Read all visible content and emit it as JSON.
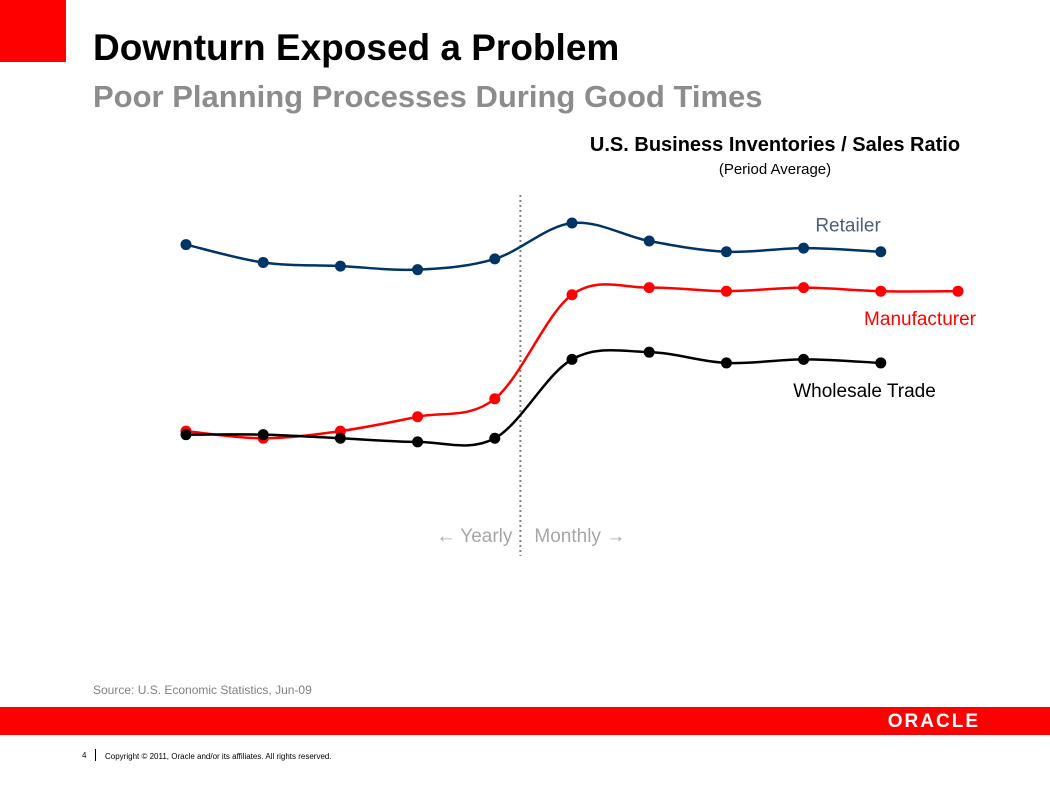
{
  "slide": {
    "title": "Downturn Exposed a Problem",
    "subtitle": "Poor Planning Processes During Good Times",
    "source": "Source:  U.S. Economic Statistics, Jun-09",
    "page_number": "4",
    "copyright": "Copyright © 2011, Oracle and/or its affiliates. All rights reserved.",
    "logo": "ORACLE"
  },
  "colors": {
    "accent": "#ff0000",
    "retailer": "#003366",
    "manufacturer": "#ff0000",
    "wholesale": "#000000",
    "divider_label": "#a6a6a6"
  },
  "chart_data": {
    "type": "line",
    "title": "U.S. Business Inventories / Sales Ratio",
    "subtitle": "(Period Average)",
    "xlabel": "",
    "ylabel": "",
    "grid": false,
    "legend": "inline labels at right end of each line",
    "divider": {
      "after_index": 4,
      "left_label": "Yearly",
      "right_label": "Monthly",
      "style": "dotted"
    },
    "x": [
      1,
      2,
      3,
      4,
      5,
      6,
      7,
      8,
      9,
      10,
      11
    ],
    "ylim": [
      1.14,
      1.6
    ],
    "series": [
      {
        "name": "Retailer",
        "color": "#003366",
        "values": [
          1.51,
          1.485,
          1.48,
          1.475,
          1.49,
          1.54,
          1.515,
          1.5,
          1.505,
          1.5,
          null
        ]
      },
      {
        "name": "Manufacturer",
        "color": "#ff0000",
        "values": [
          1.25,
          1.24,
          1.25,
          1.27,
          1.295,
          1.44,
          1.45,
          1.445,
          1.45,
          1.445,
          1.445
        ]
      },
      {
        "name": "Wholesale Trade",
        "color": "#000000",
        "values": [
          1.245,
          1.245,
          1.24,
          1.235,
          1.24,
          1.35,
          1.36,
          1.345,
          1.35,
          1.345,
          null
        ]
      }
    ]
  }
}
